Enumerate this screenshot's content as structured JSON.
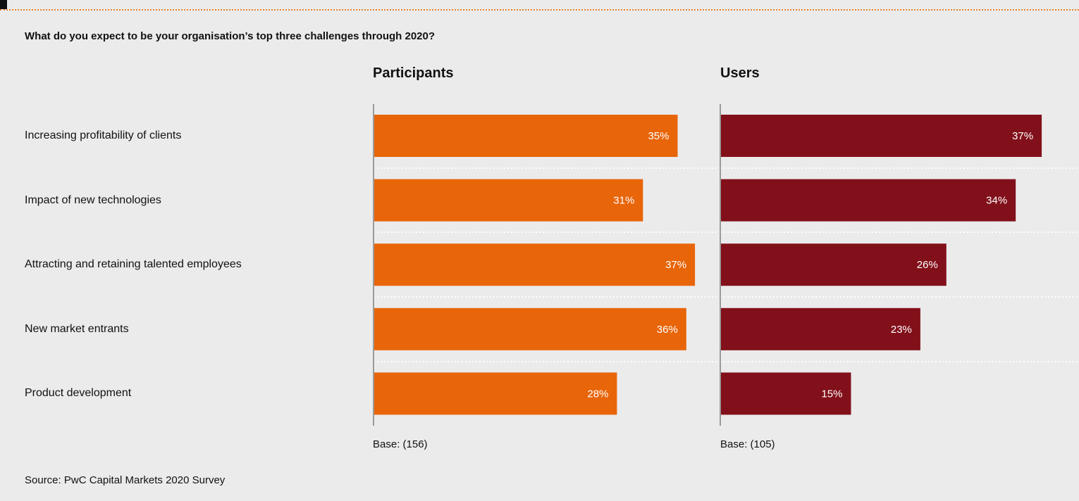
{
  "question": "What do you expect to be your organisation’s top three challenges through 2020?",
  "source": "Source: PwC Capital Markets 2020 Survey",
  "colors": {
    "participants": "#e8650a",
    "users": "#82101a",
    "accent_rule": "#e8852a"
  },
  "chart_data": {
    "type": "bar",
    "orientation": "horizontal",
    "categories": [
      "Increasing profitability of clients",
      "Impact of new technologies",
      "Attracting and retaining talented employees",
      "New market entrants",
      "Product development"
    ],
    "series": [
      {
        "name": "Participants",
        "values": [
          35,
          31,
          37,
          36,
          28
        ],
        "labels": [
          "35%",
          "31%",
          "37%",
          "36%",
          "28%"
        ],
        "base": "Base: (156)",
        "color": "#e8650a"
      },
      {
        "name": "Users",
        "values": [
          37,
          34,
          26,
          23,
          15
        ],
        "labels": [
          "37%",
          "34%",
          "26%",
          "23%",
          "15%"
        ],
        "base": "Base: (105)",
        "color": "#82101a"
      }
    ],
    "title": "What do you expect to be your organisation’s top three challenges through 2020?",
    "xlabel": "",
    "ylabel": "",
    "unit": "%",
    "grid": "dotted row separators"
  }
}
